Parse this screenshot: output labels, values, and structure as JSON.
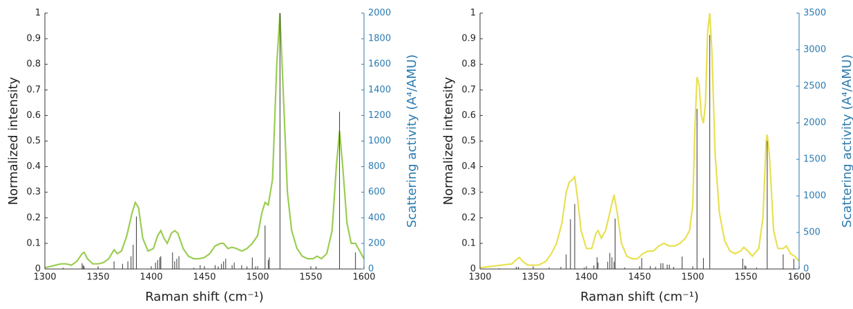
{
  "chart_data": [
    {
      "type": "line",
      "xlabel": "Raman shift (cm⁻¹)",
      "ylabel": "Normalized intensity",
      "y2label": "Scattering activity (A⁴/AMU)",
      "xlim": [
        1300,
        1600
      ],
      "xticks": [
        1300,
        1350,
        1400,
        1450,
        1500,
        1550,
        1600
      ],
      "ylim": [
        0,
        1
      ],
      "yticks": [
        0,
        0.1,
        0.2,
        0.3,
        0.4,
        0.5,
        0.6,
        0.7,
        0.8,
        0.9,
        1
      ],
      "y2lim": [
        0,
        2000
      ],
      "y2ticks": [
        0,
        200,
        400,
        600,
        800,
        1000,
        1200,
        1400,
        1600,
        1800,
        2000
      ],
      "y2color": "#2a7ab0",
      "series": [
        {
          "type": "line",
          "color": "#9acd50",
          "x": [
            1300,
            1310,
            1315,
            1320,
            1325,
            1330,
            1335,
            1337,
            1340,
            1345,
            1350,
            1355,
            1360,
            1365,
            1368,
            1372,
            1377,
            1382,
            1385,
            1388,
            1392,
            1397,
            1402,
            1406,
            1409,
            1412,
            1415,
            1419,
            1422,
            1425,
            1430,
            1435,
            1440,
            1445,
            1450,
            1455,
            1460,
            1465,
            1468,
            1472,
            1476,
            1480,
            1485,
            1490,
            1495,
            1500,
            1504,
            1507,
            1510,
            1514,
            1518,
            1521,
            1524,
            1528,
            1532,
            1537,
            1542,
            1547,
            1552,
            1556,
            1560,
            1565,
            1570,
            1574,
            1577,
            1580,
            1584,
            1588,
            1592,
            1596,
            1600
          ],
          "values": [
            0.005,
            0.015,
            0.02,
            0.02,
            0.015,
            0.03,
            0.06,
            0.065,
            0.04,
            0.02,
            0.02,
            0.025,
            0.04,
            0.075,
            0.06,
            0.07,
            0.13,
            0.22,
            0.26,
            0.24,
            0.12,
            0.07,
            0.08,
            0.13,
            0.15,
            0.12,
            0.1,
            0.14,
            0.15,
            0.14,
            0.08,
            0.05,
            0.04,
            0.04,
            0.045,
            0.06,
            0.09,
            0.1,
            0.1,
            0.08,
            0.085,
            0.08,
            0.07,
            0.08,
            0.1,
            0.13,
            0.22,
            0.26,
            0.25,
            0.35,
            0.8,
            1.0,
            0.7,
            0.3,
            0.15,
            0.08,
            0.05,
            0.04,
            0.04,
            0.05,
            0.04,
            0.06,
            0.15,
            0.4,
            0.54,
            0.4,
            0.18,
            0.1,
            0.1,
            0.07,
            0.04
          ]
        },
        {
          "type": "stick",
          "axis": "y2",
          "color": "#333333",
          "x": [
            1317,
            1335,
            1336,
            1337,
            1365,
            1373,
            1378,
            1381,
            1383,
            1386,
            1400,
            1404,
            1406,
            1408,
            1409,
            1420,
            1422,
            1424,
            1426,
            1440,
            1446,
            1460,
            1463,
            1466,
            1468,
            1470,
            1476,
            1478,
            1485,
            1490,
            1495,
            1498,
            1507,
            1510,
            1511,
            1521,
            1555,
            1577,
            1592
          ],
          "values": [
            10,
            45,
            30,
            20,
            60,
            40,
            60,
            100,
            190,
            410,
            20,
            50,
            70,
            90,
            100,
            130,
            60,
            80,
            100,
            10,
            30,
            30,
            20,
            40,
            60,
            80,
            30,
            50,
            30,
            20,
            90,
            20,
            340,
            70,
            90,
            2000,
            20,
            1230,
            130
          ]
        }
      ]
    },
    {
      "type": "line",
      "xlabel": "Raman shift (cm⁻¹)",
      "ylabel": "Normalized intensity",
      "y2label": "Scattering activity (A⁴/AMU)",
      "xlim": [
        1300,
        1600
      ],
      "xticks": [
        1300,
        1350,
        1400,
        1450,
        1500,
        1550,
        1600
      ],
      "ylim": [
        0,
        1
      ],
      "yticks": [
        0,
        0.1,
        0.2,
        0.3,
        0.4,
        0.5,
        0.6,
        0.7,
        0.8,
        0.9,
        1
      ],
      "y2lim": [
        0,
        3500
      ],
      "y2ticks": [
        0,
        500,
        1000,
        1500,
        2000,
        2500,
        3000,
        3500
      ],
      "y2color": "#2a7ab0",
      "series": [
        {
          "type": "line",
          "color": "#e8e04e",
          "x": [
            1300,
            1310,
            1320,
            1330,
            1335,
            1337,
            1340,
            1345,
            1355,
            1362,
            1367,
            1372,
            1377,
            1381,
            1384,
            1387,
            1389,
            1391,
            1395,
            1400,
            1405,
            1409,
            1411,
            1414,
            1418,
            1422,
            1426,
            1429,
            1433,
            1438,
            1443,
            1448,
            1453,
            1458,
            1463,
            1468,
            1473,
            1478,
            1483,
            1488,
            1493,
            1497,
            1500,
            1502,
            1504,
            1506,
            1508,
            1510,
            1512,
            1514,
            1516,
            1518,
            1521,
            1525,
            1530,
            1535,
            1540,
            1545,
            1548,
            1552,
            1556,
            1562,
            1566,
            1569,
            1570,
            1572,
            1576,
            1580,
            1585,
            1588,
            1592,
            1596,
            1600
          ],
          "values": [
            0.005,
            0.01,
            0.015,
            0.02,
            0.04,
            0.045,
            0.03,
            0.015,
            0.015,
            0.03,
            0.06,
            0.1,
            0.18,
            0.3,
            0.34,
            0.35,
            0.36,
            0.3,
            0.15,
            0.08,
            0.08,
            0.14,
            0.15,
            0.12,
            0.15,
            0.22,
            0.29,
            0.22,
            0.1,
            0.05,
            0.04,
            0.04,
            0.06,
            0.07,
            0.07,
            0.09,
            0.1,
            0.09,
            0.09,
            0.1,
            0.12,
            0.15,
            0.25,
            0.55,
            0.75,
            0.72,
            0.6,
            0.57,
            0.65,
            0.93,
            1.0,
            0.85,
            0.45,
            0.22,
            0.11,
            0.07,
            0.06,
            0.07,
            0.085,
            0.07,
            0.05,
            0.08,
            0.2,
            0.5,
            0.525,
            0.45,
            0.15,
            0.08,
            0.08,
            0.09,
            0.06,
            0.05,
            0.03
          ]
        },
        {
          "type": "stick",
          "axis": "y2",
          "color": "#333333",
          "x": [
            1318,
            1334,
            1336,
            1365,
            1376,
            1381,
            1385,
            1389,
            1398,
            1407,
            1410,
            1411,
            1420,
            1422,
            1424,
            1426,
            1427,
            1436,
            1452,
            1460,
            1465,
            1470,
            1472,
            1476,
            1478,
            1482,
            1490,
            1504,
            1510,
            1516,
            1547,
            1549,
            1560,
            1570,
            1585,
            1595
          ],
          "values": [
            10,
            30,
            30,
            20,
            30,
            200,
            680,
            890,
            20,
            50,
            160,
            90,
            100,
            220,
            160,
            100,
            690,
            20,
            150,
            40,
            30,
            80,
            80,
            60,
            60,
            30,
            170,
            2190,
            150,
            3200,
            140,
            50,
            20,
            1750,
            200,
            140
          ]
        }
      ]
    }
  ]
}
